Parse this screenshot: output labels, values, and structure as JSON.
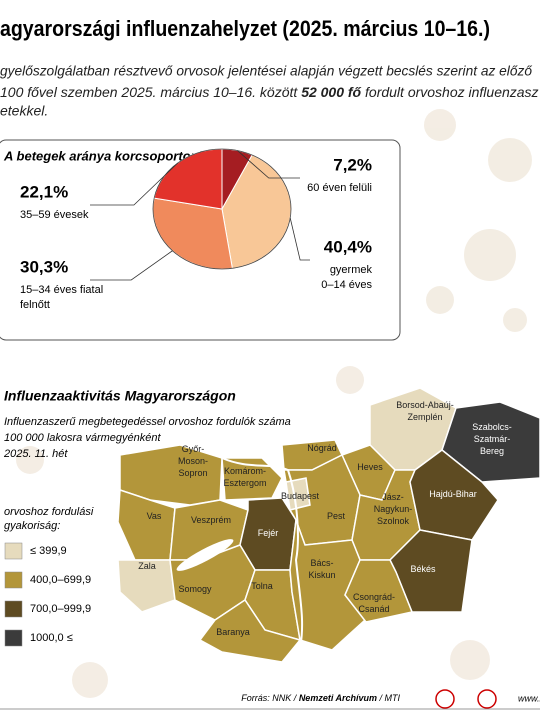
{
  "header": {
    "title": "agyarországi influenzahelyzet (2025. március 10–16.)",
    "intro": {
      "line1": "gyelőszolgálatban résztvevő orvosok jelentései alapján végzett becslés szerint az előző",
      "line2a": "100 fővel szemben 2025. március 10–16. között ",
      "line2b": "52 000 fő",
      "line2c": " fordult orvoshoz influenzasz",
      "line3": "etekkel."
    }
  },
  "chart_data": {
    "type": "pie",
    "title": "A betegek aránya korcsoportonként:",
    "categories": [
      [
        "60 éven felüli"
      ],
      [
        "gyermek",
        "0–14 éves"
      ],
      [
        "15–34 éves fiatal",
        "felnőtt"
      ],
      [
        "35–59 évesek"
      ]
    ],
    "values": [
      7.2,
      40.4,
      30.3,
      22.1
    ],
    "value_labels": [
      "7,2%",
      "40,4%",
      "30,3%",
      "22,1%"
    ],
    "colors": [
      "#a51d22",
      "#f8c797",
      "#f08a5c",
      "#e2322b"
    ]
  },
  "map": {
    "title": "Influenzaaktivitás Magyarországon",
    "subtitle": [
      "Influenzaszerű megbetegedéssel orvoshoz fordulók száma",
      "100 000 lakosra vármegyénként",
      "2025. 11. hét"
    ],
    "legend": {
      "title": [
        "orvoshoz fordulási",
        "gyakoriság:"
      ],
      "items": [
        {
          "label": "≤ 399,9",
          "color": "#e6dbbd"
        },
        {
          "label": "400,0–699,9",
          "color": "#b3963a"
        },
        {
          "label": "700,0–999,9",
          "color": "#5e4b22"
        },
        {
          "label": "1000,0 ≤",
          "color": "#3b3b3b"
        }
      ]
    },
    "regions": [
      {
        "name": [
          "Győr-",
          "Moson-",
          "Sopron"
        ],
        "color": "#b3963a"
      },
      {
        "name": [
          "Komárom-",
          "Esztergom"
        ],
        "color": "#b3963a"
      },
      {
        "name": [
          "Nógrád"
        ],
        "color": "#b3963a"
      },
      {
        "name": [
          "Borsod-Abaúj-",
          "Zemplén"
        ],
        "color": "#e6dbbd"
      },
      {
        "name": [
          "Szabolcs-",
          "Szatmár-",
          "Bereg"
        ],
        "color": "#3b3b3b"
      },
      {
        "name": [
          "Heves"
        ],
        "color": "#b3963a"
      },
      {
        "name": [
          "Budapest"
        ],
        "color": "#e6dbbd"
      },
      {
        "name": [
          "Pest"
        ],
        "color": "#b3963a"
      },
      {
        "name": [
          "Vas"
        ],
        "color": "#b3963a"
      },
      {
        "name": [
          "Veszprém"
        ],
        "color": "#b3963a"
      },
      {
        "name": [
          "Fejér"
        ],
        "color": "#5e4b22"
      },
      {
        "name": [
          "Jász-",
          "Nagykun-",
          "Szolnok"
        ],
        "color": "#b3963a"
      },
      {
        "name": [
          "Hajdú-Bihar"
        ],
        "color": "#5e4b22"
      },
      {
        "name": [
          "Zala"
        ],
        "color": "#e6dbbd"
      },
      {
        "name": [
          "Somogy"
        ],
        "color": "#b3963a"
      },
      {
        "name": [
          "Tolna"
        ],
        "color": "#b3963a"
      },
      {
        "name": [
          "Bács-",
          "Kiskun"
        ],
        "color": "#b3963a"
      },
      {
        "name": [
          "Békés"
        ],
        "color": "#5e4b22"
      },
      {
        "name": [
          "Csongrád-",
          "Csanád"
        ],
        "color": "#b3963a"
      },
      {
        "name": [
          "Baranya"
        ],
        "color": "#b3963a"
      }
    ]
  },
  "footer": {
    "source_a": "Forrás: NNK / ",
    "source_b": "Nemzeti Archívum",
    "source_c": " / MTI",
    "url": "www.m"
  }
}
